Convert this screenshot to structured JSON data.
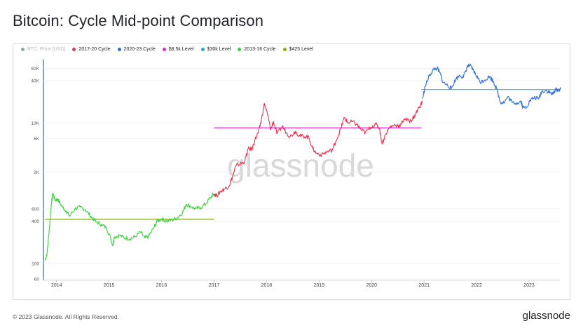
{
  "title": "Bitcoin: Cycle Mid-point Comparison",
  "footer": "© 2023 Glassnode. All Rights Reserved.",
  "brand": "glassnode",
  "watermark": "glassnode",
  "chart_data": {
    "type": "line",
    "title": "Bitcoin: Cycle Mid-point Comparison",
    "yscale": "log",
    "ylim": [
      60,
      80000
    ],
    "xlim": [
      2013.75,
      2023.6
    ],
    "y_ticks": [
      {
        "value": 60,
        "label": "60"
      },
      {
        "value": 100,
        "label": "100"
      },
      {
        "value": 400,
        "label": "400"
      },
      {
        "value": 600,
        "label": "600"
      },
      {
        "value": 2000,
        "label": "2K"
      },
      {
        "value": 6000,
        "label": "6K"
      },
      {
        "value": 10000,
        "label": "10K"
      },
      {
        "value": 40000,
        "label": "40K"
      },
      {
        "value": 60000,
        "label": "60K"
      }
    ],
    "x_ticks": [
      "2014",
      "2015",
      "2016",
      "2017",
      "2018",
      "2019",
      "2020",
      "2021",
      "2022",
      "2023"
    ],
    "x_tick_values": [
      2014,
      2015,
      2016,
      2017,
      2018,
      2019,
      2020,
      2021,
      2022,
      2023
    ],
    "legend": [
      {
        "label": "BTC: Price [USD]",
        "color": "#8aa89a",
        "muted": true
      },
      {
        "label": "2017-20 Cycle",
        "color": "#f0304d"
      },
      {
        "label": "2020-23 Cycle",
        "color": "#2c6fe0"
      },
      {
        "label": "$8.5k Level",
        "color": "#d42bd0"
      },
      {
        "label": "$30k Level",
        "color": "#2aa7c9"
      },
      {
        "label": "2013-16 Cycle",
        "color": "#3bd13b"
      },
      {
        "label": "$425 Level",
        "color": "#7fae10"
      }
    ],
    "series": [
      {
        "name": "2013-16 Cycle",
        "color": "#3bd13b",
        "points": [
          [
            2013.78,
            110
          ],
          [
            2013.82,
            140
          ],
          [
            2013.86,
            300
          ],
          [
            2013.9,
            700
          ],
          [
            2013.93,
            1000
          ],
          [
            2013.97,
            800
          ],
          [
            2014.02,
            820
          ],
          [
            2014.1,
            650
          ],
          [
            2014.18,
            560
          ],
          [
            2014.25,
            470
          ],
          [
            2014.35,
            600
          ],
          [
            2014.45,
            630
          ],
          [
            2014.55,
            580
          ],
          [
            2014.65,
            470
          ],
          [
            2014.75,
            390
          ],
          [
            2014.85,
            360
          ],
          [
            2014.95,
            320
          ],
          [
            2015.03,
            230
          ],
          [
            2015.07,
            180
          ],
          [
            2015.1,
            240
          ],
          [
            2015.2,
            250
          ],
          [
            2015.3,
            230
          ],
          [
            2015.4,
            225
          ],
          [
            2015.5,
            240
          ],
          [
            2015.6,
            280
          ],
          [
            2015.68,
            230
          ],
          [
            2015.75,
            240
          ],
          [
            2015.85,
            320
          ],
          [
            2015.92,
            400
          ],
          [
            2016.0,
            430
          ],
          [
            2016.1,
            400
          ],
          [
            2016.2,
            415
          ],
          [
            2016.3,
            445
          ],
          [
            2016.4,
            530
          ],
          [
            2016.47,
            700
          ],
          [
            2016.55,
            650
          ],
          [
            2016.65,
            600
          ],
          [
            2016.75,
            620
          ],
          [
            2016.85,
            720
          ],
          [
            2016.95,
            900
          ],
          [
            2017.0,
            980
          ]
        ]
      },
      {
        "name": "2017-20 Cycle",
        "color": "#f0304d",
        "points": [
          [
            2017.0,
            980
          ],
          [
            2017.05,
            920
          ],
          [
            2017.12,
            1050
          ],
          [
            2017.2,
            1150
          ],
          [
            2017.28,
            1250
          ],
          [
            2017.35,
            1700
          ],
          [
            2017.42,
            2500
          ],
          [
            2017.5,
            2600
          ],
          [
            2017.58,
            2800
          ],
          [
            2017.65,
            4300
          ],
          [
            2017.72,
            4200
          ],
          [
            2017.78,
            5800
          ],
          [
            2017.85,
            7500
          ],
          [
            2017.9,
            11000
          ],
          [
            2017.96,
            19000
          ],
          [
            2018.02,
            13000
          ],
          [
            2018.08,
            8000
          ],
          [
            2018.13,
            10500
          ],
          [
            2018.2,
            7000
          ],
          [
            2018.3,
            9000
          ],
          [
            2018.38,
            7200
          ],
          [
            2018.45,
            6400
          ],
          [
            2018.55,
            7600
          ],
          [
            2018.62,
            6600
          ],
          [
            2018.7,
            6500
          ],
          [
            2018.8,
            6300
          ],
          [
            2018.88,
            4300
          ],
          [
            2018.95,
            3700
          ],
          [
            2019.05,
            3500
          ],
          [
            2019.15,
            3900
          ],
          [
            2019.25,
            4100
          ],
          [
            2019.32,
            5500
          ],
          [
            2019.42,
            8500
          ],
          [
            2019.48,
            12000
          ],
          [
            2019.55,
            10000
          ],
          [
            2019.63,
            10500
          ],
          [
            2019.72,
            9500
          ],
          [
            2019.8,
            8000
          ],
          [
            2019.88,
            7300
          ],
          [
            2019.98,
            8700
          ],
          [
            2020.08,
            9600
          ],
          [
            2020.15,
            8500
          ],
          [
            2020.2,
            5000
          ],
          [
            2020.27,
            7000
          ],
          [
            2020.35,
            8800
          ],
          [
            2020.45,
            9400
          ],
          [
            2020.55,
            9200
          ],
          [
            2020.62,
            11500
          ],
          [
            2020.72,
            10600
          ],
          [
            2020.78,
            11400
          ],
          [
            2020.84,
            13500
          ],
          [
            2020.9,
            16500
          ],
          [
            2020.97,
            20000
          ]
        ]
      },
      {
        "name": "2020-23 Cycle",
        "color": "#2c6fe0",
        "points": [
          [
            2020.97,
            22000
          ],
          [
            2021.02,
            33000
          ],
          [
            2021.1,
            47000
          ],
          [
            2021.18,
            58000
          ],
          [
            2021.25,
            60000
          ],
          [
            2021.3,
            52000
          ],
          [
            2021.36,
            38000
          ],
          [
            2021.45,
            34000
          ],
          [
            2021.52,
            31000
          ],
          [
            2021.6,
            42000
          ],
          [
            2021.68,
            48000
          ],
          [
            2021.75,
            45000
          ],
          [
            2021.82,
            63000
          ],
          [
            2021.87,
            66000
          ],
          [
            2021.93,
            57000
          ],
          [
            2022.0,
            47000
          ],
          [
            2022.07,
            38000
          ],
          [
            2022.15,
            41000
          ],
          [
            2022.25,
            46000
          ],
          [
            2022.32,
            39000
          ],
          [
            2022.38,
            31000
          ],
          [
            2022.45,
            20000
          ],
          [
            2022.52,
            19500
          ],
          [
            2022.6,
            23500
          ],
          [
            2022.68,
            19500
          ],
          [
            2022.78,
            19300
          ],
          [
            2022.85,
            20500
          ],
          [
            2022.88,
            16500
          ],
          [
            2022.95,
            16800
          ],
          [
            2023.02,
            21000
          ],
          [
            2023.1,
            23000
          ],
          [
            2023.18,
            22000
          ],
          [
            2023.24,
            28000
          ],
          [
            2023.32,
            29000
          ],
          [
            2023.4,
            27000
          ],
          [
            2023.45,
            25500
          ],
          [
            2023.5,
            30000
          ],
          [
            2023.56,
            29500
          ],
          [
            2023.6,
            30500
          ]
        ]
      }
    ],
    "levels": [
      {
        "name": "$425 Level",
        "value": 425,
        "x_range": [
          2013.78,
          2017.0
        ],
        "color": "#7fae10"
      },
      {
        "name": "$8.5k Level",
        "value": 8500,
        "x_range": [
          2017.0,
          2020.95
        ],
        "color": "#d42bd0"
      },
      {
        "name": "$30k Level",
        "value": 30000,
        "x_range": [
          2020.95,
          2023.6
        ],
        "color": "#2aa7c9"
      }
    ]
  }
}
